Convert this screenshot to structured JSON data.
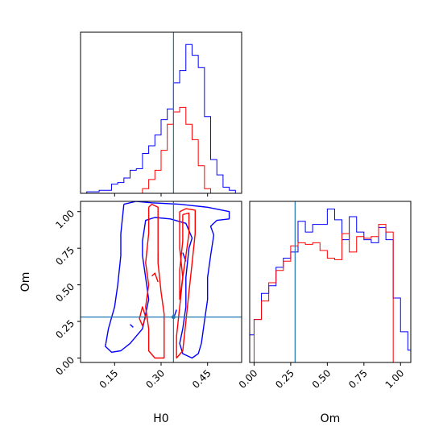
{
  "chart_data": {
    "type": "corner",
    "parameters": [
      "H0",
      "Om"
    ],
    "truths": {
      "H0": 0.34,
      "Om": 0.28
    },
    "series_colors": [
      "#0000ff",
      "#ff0000"
    ],
    "truth_color": "#1f77b4",
    "panels": {
      "h0_histogram": {
        "type": "step-histogram",
        "xlim": [
          0.04,
          0.56
        ],
        "bin_edges": [
          0.06,
          0.08,
          0.1,
          0.12,
          0.14,
          0.16,
          0.18,
          0.2,
          0.22,
          0.24,
          0.26,
          0.28,
          0.3,
          0.32,
          0.34,
          0.36,
          0.38,
          0.4,
          0.42,
          0.44,
          0.46,
          0.48,
          0.5,
          0.52,
          0.54
        ],
        "series": [
          {
            "color": "#0000ff",
            "heights": [
              0.1,
              0.1,
              0.2,
              0.2,
              0.6,
              0.7,
              1.0,
              1.5,
              1.6,
              2.6,
              3.1,
              3.8,
              4.8,
              5.5,
              7.2,
              8.0,
              9.7,
              9.0,
              8.2,
              5.0,
              2.2,
              1.2,
              0.4,
              0.2
            ]
          },
          {
            "color": "#ff0000",
            "heights": [
              0,
              0,
              0,
              0,
              0,
              0,
              0,
              0,
              0,
              0.3,
              0.9,
              1.5,
              2.8,
              4.5,
              5.3,
              5.6,
              4.5,
              3.5,
              1.8,
              0.3,
              0,
              0,
              0,
              0
            ]
          }
        ]
      },
      "om_histogram": {
        "type": "step-histogram",
        "xlim": [
          -0.03,
          1.07
        ],
        "xticks": [
          "0.00",
          "0.25",
          "0.50",
          "0.75",
          "1.00"
        ],
        "xtick_values": [
          0,
          0.25,
          0.5,
          0.75,
          1.0
        ],
        "xlabel": "Om",
        "bin_edges": [
          -0.03,
          0.0,
          0.05,
          0.1,
          0.15,
          0.2,
          0.25,
          0.3,
          0.35,
          0.4,
          0.45,
          0.5,
          0.55,
          0.6,
          0.65,
          0.7,
          0.75,
          0.8,
          0.85,
          0.9,
          0.95,
          1.0,
          1.05,
          1.07
        ],
        "series": [
          {
            "color": "#0000ff",
            "heights": [
              1.8,
              2.8,
              4.5,
              5.0,
              6.2,
              6.8,
              7.2,
              9.2,
              8.5,
              9.0,
              9.0,
              10.0,
              9.3,
              8.0,
              9.5,
              8.5,
              8.0,
              7.8,
              8.8,
              8.0,
              4.2,
              2.0,
              0.8
            ]
          },
          {
            "color": "#ff0000",
            "heights": [
              0,
              2.8,
              4.0,
              5.2,
              6.0,
              6.6,
              7.6,
              7.8,
              7.7,
              7.8,
              7.3,
              6.8,
              6.7,
              8.4,
              7.2,
              8.2,
              8.1,
              8.2,
              9.0,
              8.5,
              0,
              0,
              0
            ]
          }
        ]
      },
      "joint": {
        "xlim": [
          0.04,
          0.56
        ],
        "ylim": [
          -0.03,
          1.07
        ],
        "xticks": [
          "0.15",
          "0.30",
          "0.45"
        ],
        "xtick_values": [
          0.15,
          0.3,
          0.45
        ],
        "yticks": [
          "0.00",
          "0.25",
          "0.50",
          "0.75",
          "1.00"
        ],
        "ytick_values": [
          0,
          0.25,
          0.5,
          0.75,
          1.0
        ],
        "xlabel": "H0",
        "ylabel": "Om",
        "contours": [
          {
            "color": "#0000ff",
            "points": [
              [
                0.18,
                1.05
              ],
              [
                0.22,
                1.07
              ],
              [
                0.27,
                1.06
              ],
              [
                0.36,
                1.05
              ],
              [
                0.45,
                1.03
              ],
              [
                0.52,
                1.0
              ],
              [
                0.52,
                0.95
              ],
              [
                0.48,
                0.94
              ],
              [
                0.46,
                0.9
              ],
              [
                0.47,
                0.84
              ],
              [
                0.46,
                0.7
              ],
              [
                0.45,
                0.55
              ],
              [
                0.45,
                0.4
              ],
              [
                0.44,
                0.25
              ],
              [
                0.43,
                0.1
              ],
              [
                0.42,
                0.03
              ],
              [
                0.4,
                0.0
              ],
              [
                0.37,
                0.03
              ],
              [
                0.36,
                0.1
              ],
              [
                0.37,
                0.2
              ],
              [
                0.38,
                0.35
              ],
              [
                0.38,
                0.55
              ],
              [
                0.39,
                0.75
              ],
              [
                0.4,
                0.82
              ],
              [
                0.38,
                0.92
              ],
              [
                0.33,
                0.95
              ],
              [
                0.28,
                0.96
              ],
              [
                0.25,
                0.94
              ],
              [
                0.24,
                0.8
              ],
              [
                0.24,
                0.7
              ],
              [
                0.25,
                0.55
              ],
              [
                0.26,
                0.4
              ],
              [
                0.25,
                0.3
              ],
              [
                0.24,
                0.2
              ],
              [
                0.22,
                0.15
              ],
              [
                0.2,
                0.1
              ],
              [
                0.17,
                0.05
              ],
              [
                0.14,
                0.04
              ],
              [
                0.12,
                0.08
              ],
              [
                0.13,
                0.2
              ],
              [
                0.15,
                0.35
              ],
              [
                0.16,
                0.5
              ],
              [
                0.17,
                0.7
              ],
              [
                0.17,
                0.85
              ],
              [
                0.18,
                1.05
              ]
            ]
          },
          {
            "color": "#0000ff",
            "points": [
              [
                0.2,
                0.23
              ],
              [
                0.21,
                0.21
              ]
            ]
          },
          {
            "color": "#0000ff",
            "points": [
              [
                0.34,
                0.27
              ],
              [
                0.35,
                0.33
              ]
            ]
          },
          {
            "color": "#0000ff",
            "points": [
              [
                0.37,
                0.72
              ],
              [
                0.38,
                0.66
              ]
            ]
          },
          {
            "color": "#ff0000",
            "points": [
              [
                0.26,
                1.03
              ],
              [
                0.27,
                1.05
              ],
              [
                0.29,
                1.03
              ],
              [
                0.29,
                0.85
              ],
              [
                0.29,
                0.65
              ],
              [
                0.3,
                0.45
              ],
              [
                0.31,
                0.3
              ],
              [
                0.31,
                0.15
              ],
              [
                0.31,
                0.0
              ],
              [
                0.28,
                0.0
              ],
              [
                0.26,
                0.05
              ],
              [
                0.26,
                0.2
              ],
              [
                0.25,
                0.35
              ],
              [
                0.26,
                0.5
              ],
              [
                0.25,
                0.65
              ],
              [
                0.26,
                0.85
              ],
              [
                0.26,
                1.03
              ]
            ]
          },
          {
            "color": "#ff0000",
            "points": [
              [
                0.36,
                1.0
              ],
              [
                0.38,
                1.02
              ],
              [
                0.41,
                1.01
              ],
              [
                0.41,
                0.85
              ],
              [
                0.4,
                0.65
              ],
              [
                0.39,
                0.45
              ],
              [
                0.38,
                0.25
              ],
              [
                0.37,
                0.05
              ],
              [
                0.35,
                0.0
              ],
              [
                0.35,
                0.15
              ],
              [
                0.36,
                0.35
              ],
              [
                0.37,
                0.55
              ],
              [
                0.36,
                0.75
              ],
              [
                0.36,
                1.0
              ]
            ]
          },
          {
            "color": "#ff0000",
            "points": [
              [
                0.37,
                0.98
              ],
              [
                0.39,
                0.99
              ],
              [
                0.39,
                0.85
              ],
              [
                0.38,
                0.7
              ],
              [
                0.37,
                0.55
              ],
              [
                0.36,
                0.4
              ],
              [
                0.36,
                0.6
              ],
              [
                0.37,
                0.8
              ],
              [
                0.37,
                0.98
              ]
            ]
          },
          {
            "color": "#ff0000",
            "points": [
              [
                0.27,
                0.56
              ],
              [
                0.28,
                0.58
              ],
              [
                0.29,
                0.52
              ]
            ]
          },
          {
            "color": "#ff0000",
            "points": [
              [
                0.24,
                0.22
              ],
              [
                0.25,
                0.28
              ],
              [
                0.24,
                0.35
              ],
              [
                0.23,
                0.27
              ],
              [
                0.24,
                0.22
              ]
            ]
          },
          {
            "color": "#ff0000",
            "points": [
              [
                0.29,
                0.72
              ],
              [
                0.29,
                0.66
              ]
            ]
          }
        ]
      }
    }
  }
}
